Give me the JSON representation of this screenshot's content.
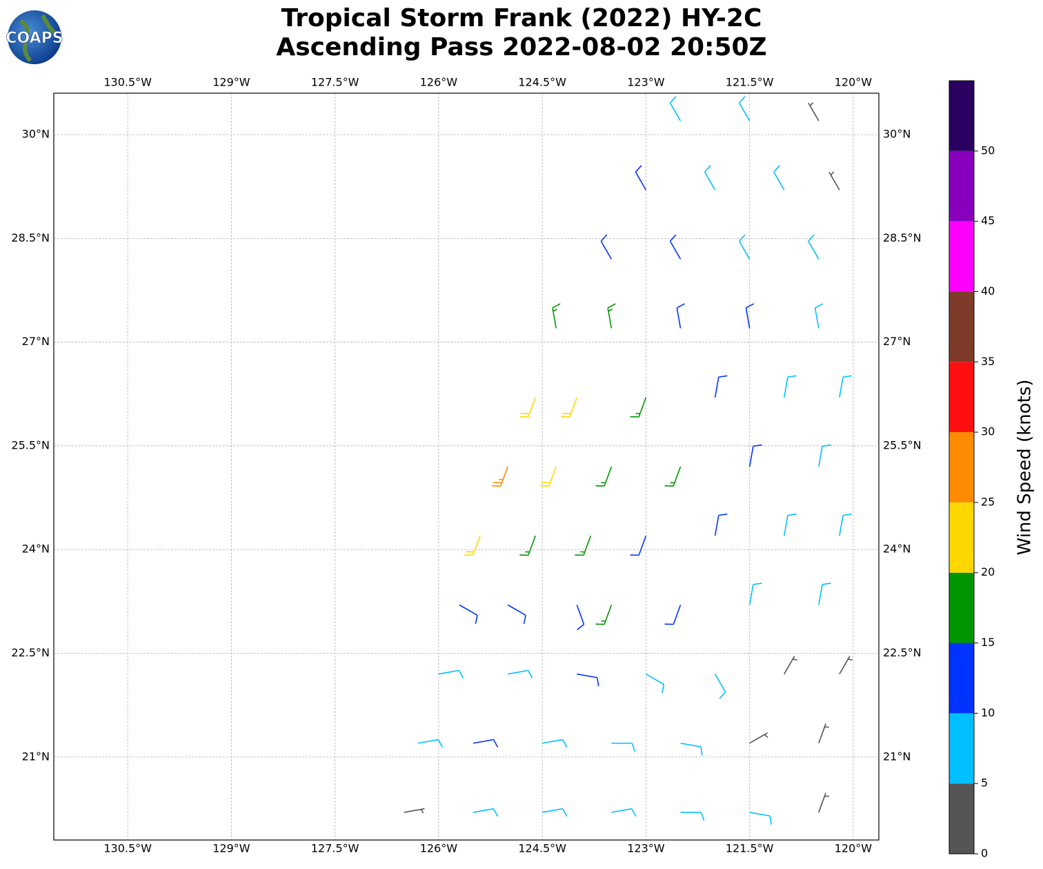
{
  "chart_data": {
    "type": "wind-barbs",
    "title": "Tropical Storm Frank (2022) HY-2C",
    "subtitle": "Ascending Pass 2022-08-02 20:50Z",
    "logo_text": "COAPS",
    "xlim": [
      -131.57,
      -119.63
    ],
    "ylim": [
      19.8,
      30.6
    ],
    "xticks": [
      {
        "value": -130.5,
        "label": "130.5°W"
      },
      {
        "value": -129,
        "label": "129°W"
      },
      {
        "value": -127.5,
        "label": "127.5°W"
      },
      {
        "value": -126,
        "label": "126°W"
      },
      {
        "value": -124.5,
        "label": "124.5°W"
      },
      {
        "value": -123,
        "label": "123°W"
      },
      {
        "value": -121.5,
        "label": "121.5°W"
      },
      {
        "value": -120,
        "label": "120°W"
      }
    ],
    "yticks": [
      {
        "value": 21,
        "label": "21°N"
      },
      {
        "value": 22.5,
        "label": "22.5°N"
      },
      {
        "value": 24,
        "label": "24°N"
      },
      {
        "value": 25.5,
        "label": "25.5°N"
      },
      {
        "value": 27,
        "label": "27°N"
      },
      {
        "value": 28.5,
        "label": "28.5°N"
      },
      {
        "value": 30,
        "label": "30°N"
      }
    ],
    "grid": true,
    "colorbar": {
      "label": "Wind Speed (knots)",
      "lim": [
        0,
        55
      ],
      "bounds": [
        0,
        5,
        10,
        15,
        20,
        25,
        30,
        35,
        40,
        45,
        50,
        55
      ],
      "colors": [
        "#555555",
        "#00bfff",
        "#0033ff",
        "#009600",
        "#ffd700",
        "#ff8c00",
        "#ff1010",
        "#7f3b2a",
        "#ff00ff",
        "#8800bb",
        "#2a0060"
      ],
      "ticks": [
        0,
        5,
        10,
        15,
        20,
        25,
        30,
        35,
        40,
        45,
        50
      ]
    },
    "barbs": [
      [
        -122.5,
        30.2,
        8,
        330
      ],
      [
        -121.5,
        30.2,
        8,
        330
      ],
      [
        -120.5,
        30.2,
        4,
        330
      ],
      [
        -123,
        29.2,
        12,
        330
      ],
      [
        -122,
        29.2,
        8,
        330
      ],
      [
        -121,
        29.2,
        8,
        330
      ],
      [
        -120.2,
        29.2,
        4,
        330
      ],
      [
        -123.5,
        28.2,
        12,
        330
      ],
      [
        -122.5,
        28.2,
        12,
        330
      ],
      [
        -121.5,
        28.2,
        8,
        330
      ],
      [
        -120.5,
        28.2,
        8,
        330
      ],
      [
        -124.3,
        27.2,
        17,
        350
      ],
      [
        -123.5,
        27.2,
        17,
        350
      ],
      [
        -122.5,
        27.2,
        12,
        350
      ],
      [
        -121.5,
        27.2,
        12,
        350
      ],
      [
        -120.5,
        27.2,
        8,
        350
      ],
      [
        -124.6,
        26.2,
        22,
        200
      ],
      [
        -124,
        26.2,
        22,
        200
      ],
      [
        -123,
        26.2,
        17,
        200
      ],
      [
        -122,
        26.2,
        12,
        10
      ],
      [
        -121,
        26.2,
        8,
        10
      ],
      [
        -120.2,
        26.2,
        8,
        10
      ],
      [
        -125,
        25.2,
        27,
        200
      ],
      [
        -124.3,
        25.2,
        22,
        200
      ],
      [
        -123.5,
        25.2,
        17,
        200
      ],
      [
        -122.5,
        25.2,
        17,
        200
      ],
      [
        -121.5,
        25.2,
        12,
        10
      ],
      [
        -120.5,
        25.2,
        8,
        10
      ],
      [
        -125.4,
        24.2,
        22,
        200
      ],
      [
        -124.6,
        24.2,
        17,
        200
      ],
      [
        -123.8,
        24.2,
        17,
        200
      ],
      [
        -123,
        24.2,
        12,
        200
      ],
      [
        -122,
        24.2,
        12,
        10
      ],
      [
        -121,
        24.2,
        8,
        10
      ],
      [
        -120.2,
        24.2,
        8,
        10
      ],
      [
        -125.7,
        23.2,
        12,
        120
      ],
      [
        -125,
        23.2,
        12,
        120
      ],
      [
        -124,
        23.2,
        12,
        160
      ],
      [
        -123.5,
        23.2,
        17,
        200
      ],
      [
        -122.5,
        23.2,
        12,
        200
      ],
      [
        -121.5,
        23.2,
        8,
        10
      ],
      [
        -120.5,
        23.2,
        8,
        10
      ],
      [
        -126,
        22.2,
        8,
        80
      ],
      [
        -125,
        22.2,
        8,
        80
      ],
      [
        -124,
        22.2,
        12,
        100
      ],
      [
        -123,
        22.2,
        8,
        120
      ],
      [
        -122,
        22.2,
        8,
        150
      ],
      [
        -121,
        22.2,
        4,
        30
      ],
      [
        -120.2,
        22.2,
        4,
        30
      ],
      [
        -126.3,
        21.2,
        8,
        80
      ],
      [
        -125.5,
        21.2,
        12,
        80
      ],
      [
        -124.5,
        21.2,
        8,
        80
      ],
      [
        -123.5,
        21.2,
        8,
        90
      ],
      [
        -122.5,
        21.2,
        8,
        100
      ],
      [
        -121.5,
        21.2,
        4,
        60
      ],
      [
        -120.5,
        21.2,
        4,
        20
      ],
      [
        -126.5,
        20.2,
        4,
        80
      ],
      [
        -125.5,
        20.2,
        8,
        80
      ],
      [
        -124.5,
        20.2,
        8,
        80
      ],
      [
        -123.5,
        20.2,
        8,
        80
      ],
      [
        -122.5,
        20.2,
        8,
        90
      ],
      [
        -121.5,
        20.2,
        8,
        100
      ],
      [
        -120.5,
        20.2,
        4,
        20
      ]
    ]
  }
}
